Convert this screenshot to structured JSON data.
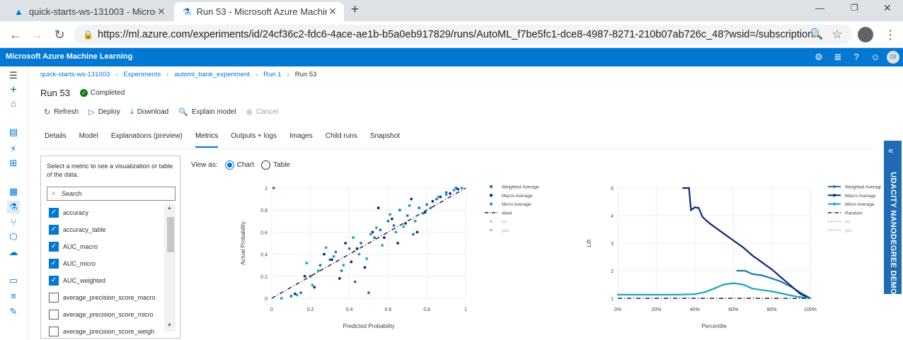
{
  "browser": {
    "tabs": [
      {
        "title": "quick-starts-ws-131003 - Micros",
        "active": false
      },
      {
        "title": "Run 53 - Microsoft Azure Machin",
        "active": true
      }
    ],
    "new_tab": "+",
    "url": "https://ml.azure.com/experiments/id/24cf36c2-fdc6-4ace-ae1b-b5a0eb917829/runs/AutoML_f7be5fc1-dce8-4987-8271-210b07ab726c_48?wsid=/subscription..."
  },
  "header": {
    "brand": "Microsoft Azure Machine Learning",
    "avatar_initials": "OI"
  },
  "breadcrumb": {
    "items": [
      "quick-starts-ws-131003",
      "Experiments",
      "automl_bank_experiment",
      "Run 1"
    ],
    "current": "Run 53"
  },
  "run": {
    "title": "Run 53",
    "status": "Completed"
  },
  "toolbar": {
    "refresh": "Refresh",
    "deploy": "Deploy",
    "download": "Download",
    "explain": "Explain model",
    "cancel": "Cancel"
  },
  "tabs": [
    "Details",
    "Model",
    "Explanations (preview)",
    "Metrics",
    "Outputs + logs",
    "Images",
    "Child runs",
    "Snapshot"
  ],
  "active_tab": "Metrics",
  "metrics_panel": {
    "instructions": "Select a metric to see a visualization or table of the data.",
    "search_placeholder": "Search",
    "items": [
      {
        "label": "accuracy",
        "checked": true
      },
      {
        "label": "accuracy_table",
        "checked": true
      },
      {
        "label": "AUC_macro",
        "checked": true
      },
      {
        "label": "AUC_micro",
        "checked": true
      },
      {
        "label": "AUC_weighted",
        "checked": true
      },
      {
        "label": "average_precision_score_macro",
        "checked": false
      },
      {
        "label": "average_precision_score_micro",
        "checked": false
      },
      {
        "label": "average_precision_score_weigh",
        "checked": false
      }
    ]
  },
  "view_as": {
    "label": "View as:",
    "chart": "Chart",
    "table": "Table",
    "selected": "Chart"
  },
  "side_banner": "UDACITY NANODEGREE DEMO",
  "colors": {
    "azure_blue": "#0078d4",
    "weighted": "#1f77b4",
    "macro": "#0f2a78",
    "micro": "#16a8b8",
    "ideal": "#2d1a4a"
  },
  "chart_data": [
    {
      "type": "scatter",
      "xlabel": "Predicted Probability",
      "ylabel": "Actual Probability",
      "xlim": [
        0,
        1
      ],
      "ylim": [
        0,
        1
      ],
      "xticks": [
        "0",
        "0.2",
        "0.4",
        "0.6",
        "0.8",
        "1"
      ],
      "yticks": [
        "0",
        "0.2",
        "0.4",
        "0.6",
        "0.8",
        "1"
      ],
      "legend_position": "right",
      "legend": [
        "Weighted Average",
        "Macro Average",
        "Micro Average",
        "Ideal",
        "no",
        "yes"
      ],
      "series": [
        {
          "name": "Weighted Average",
          "x": [
            0.01,
            0.1,
            0.15,
            0.2,
            0.25,
            0.3,
            0.33,
            0.36,
            0.4,
            0.43,
            0.46,
            0.5,
            0.53,
            0.56,
            0.6,
            0.63,
            0.66,
            0.7,
            0.73,
            0.76,
            0.8,
            0.85,
            0.9,
            0.95
          ],
          "y": [
            1.0,
            0.02,
            0.05,
            0.2,
            0.3,
            0.35,
            0.42,
            0.25,
            0.45,
            0.15,
            0.5,
            0.05,
            0.55,
            0.62,
            0.7,
            0.66,
            0.8,
            0.75,
            0.58,
            0.82,
            0.85,
            0.9,
            0.96,
            1.0
          ]
        },
        {
          "name": "Macro Average",
          "x": [
            0.12,
            0.17,
            0.22,
            0.27,
            0.31,
            0.35,
            0.38,
            0.41,
            0.44,
            0.48,
            0.52,
            0.55,
            0.58,
            0.62,
            0.65,
            0.69,
            0.72,
            0.75,
            0.79,
            0.83,
            0.87,
            0.92,
            0.96
          ],
          "y": [
            0.04,
            0.2,
            0.1,
            0.4,
            0.35,
            0.18,
            0.5,
            0.33,
            0.45,
            0.28,
            0.6,
            0.82,
            0.55,
            0.72,
            0.5,
            0.68,
            0.9,
            0.6,
            0.78,
            0.88,
            0.92,
            0.95,
            0.99
          ]
        },
        {
          "name": "Micro Average",
          "x": [
            0.05,
            0.13,
            0.18,
            0.21,
            0.24,
            0.28,
            0.32,
            0.37,
            0.42,
            0.45,
            0.49,
            0.51,
            0.54,
            0.57,
            0.61,
            0.64,
            0.68,
            0.71,
            0.74,
            0.78,
            0.82,
            0.86,
            0.9,
            0.94,
            0.98
          ],
          "y": [
            0.0,
            0.03,
            0.32,
            0.12,
            0.25,
            0.46,
            0.38,
            0.3,
            0.55,
            0.4,
            0.36,
            0.58,
            0.64,
            0.48,
            0.76,
            0.6,
            0.65,
            0.84,
            0.7,
            0.77,
            0.82,
            0.92,
            0.94,
            0.98,
            1.0
          ]
        },
        {
          "name": "Ideal",
          "x": [
            0,
            1
          ],
          "y": [
            0,
            1
          ]
        }
      ]
    },
    {
      "type": "line",
      "xlabel": "Percentile",
      "ylabel": "Lift",
      "xlim": [
        0,
        100
      ],
      "ylim": [
        1,
        5
      ],
      "xticks": [
        "0%",
        "20%",
        "40%",
        "60%",
        "80%",
        "100%"
      ],
      "yticks": [
        "1",
        "2",
        "3",
        "4",
        "5"
      ],
      "legend_position": "right",
      "legend": [
        "Weighted Average",
        "Macro Average",
        "Micro Average",
        "Random",
        "no",
        "yes"
      ],
      "series": [
        {
          "name": "Weighted Average",
          "x": [
            62,
            66,
            70,
            75,
            80,
            85,
            90,
            95,
            100
          ],
          "y": [
            2.0,
            2.0,
            1.88,
            1.83,
            1.72,
            1.6,
            1.42,
            1.2,
            1.0
          ]
        },
        {
          "name": "Macro Average",
          "x": [
            34,
            37,
            38,
            40,
            42,
            44,
            46,
            48,
            52,
            56,
            60,
            65,
            70,
            75,
            80,
            85,
            90,
            95,
            100
          ],
          "y": [
            5.0,
            5.0,
            4.2,
            4.3,
            4.28,
            3.95,
            3.82,
            3.7,
            3.5,
            3.3,
            3.1,
            2.85,
            2.55,
            2.3,
            2.05,
            1.75,
            1.45,
            1.15,
            1.0
          ]
        },
        {
          "name": "Micro Average",
          "x": [
            0,
            20,
            30,
            40,
            45,
            50,
            55,
            60,
            65,
            70,
            75,
            80,
            85,
            90,
            95,
            100
          ],
          "y": [
            1.13,
            1.13,
            1.13,
            1.15,
            1.22,
            1.35,
            1.5,
            1.55,
            1.5,
            1.35,
            1.3,
            1.25,
            1.18,
            1.1,
            1.04,
            1.0
          ]
        },
        {
          "name": "Random",
          "x": [
            0,
            100
          ],
          "y": [
            1,
            1
          ]
        }
      ]
    }
  ]
}
